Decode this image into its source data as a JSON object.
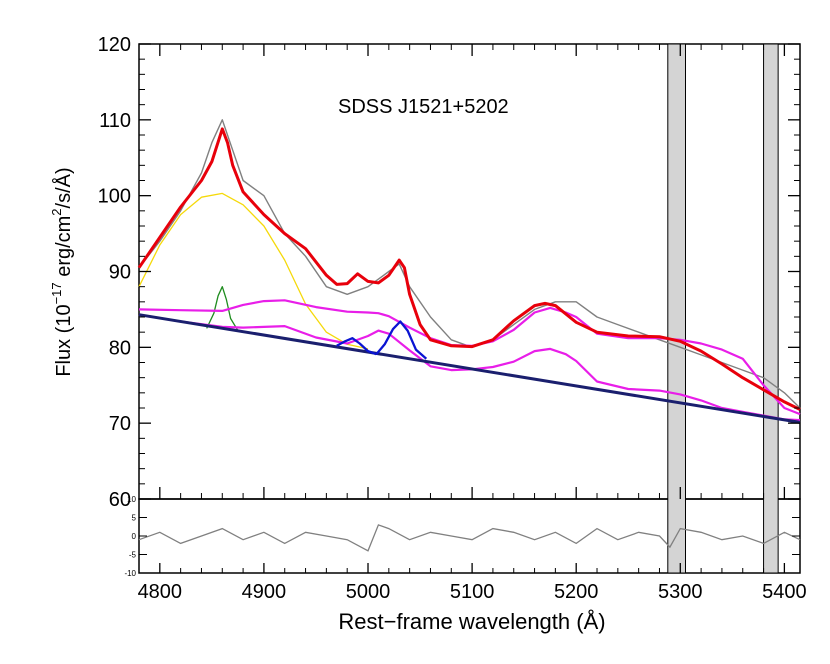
{
  "chart_data": {
    "type": "line",
    "title": "SDSS J1521+5202",
    "xlabel": "Rest−frame wavelength (Å)",
    "ylabel_main": "Flux (10",
    "ylabel_exp": "−17",
    "ylabel_mid": " erg/cm",
    "ylabel_exp2": "2",
    "ylabel_end": "/s/Å)",
    "xlim": [
      4780,
      5415
    ],
    "ylim": [
      60,
      120
    ],
    "residual_ylim": [
      -10,
      10
    ],
    "x_ticks": [
      4800,
      4900,
      5000,
      5100,
      5200,
      5300,
      5400
    ],
    "y_ticks": [
      60,
      70,
      80,
      90,
      100,
      110,
      120
    ],
    "residual_ticks": [
      -10,
      -5,
      0,
      5,
      10
    ],
    "shaded_regions": [
      [
        5288,
        5305
      ],
      [
        5380,
        5394
      ]
    ],
    "colors": {
      "observed": "#808080",
      "total_model": "#e8000b",
      "continuum": "#1a1f6e",
      "broad_hbeta": "#f5d90a",
      "narrow_hbeta": "#1e8c1e",
      "oiii": "#0a14d2",
      "feii": "#e81ee8",
      "residual": "#808080",
      "shade": "#d4d4d4"
    },
    "series": [
      {
        "name": "observed",
        "x": [
          4780,
          4800,
          4820,
          4840,
          4850,
          4860,
          4870,
          4880,
          4900,
          4920,
          4940,
          4960,
          4980,
          5000,
          5020,
          5030,
          5040,
          5060,
          5080,
          5100,
          5120,
          5140,
          5160,
          5180,
          5200,
          5220,
          5240,
          5260,
          5280,
          5300,
          5320,
          5340,
          5360,
          5380,
          5400,
          5415
        ],
        "y": [
          90.5,
          94,
          98,
          103,
          107,
          110,
          106,
          102,
          100,
          95,
          92,
          88,
          87,
          88,
          90,
          91,
          88,
          84,
          81,
          80,
          81,
          83,
          85,
          86,
          86,
          84,
          83,
          82,
          81,
          80,
          79,
          78,
          77,
          76,
          74,
          72
        ]
      },
      {
        "name": "total_model",
        "x": [
          4780,
          4800,
          4820,
          4840,
          4850,
          4860,
          4865,
          4870,
          4880,
          4900,
          4920,
          4940,
          4960,
          4970,
          4980,
          4990,
          5000,
          5010,
          5020,
          5030,
          5035,
          5040,
          5050,
          5060,
          5080,
          5100,
          5120,
          5140,
          5160,
          5170,
          5180,
          5200,
          5220,
          5250,
          5280,
          5300,
          5320,
          5340,
          5360,
          5380,
          5400,
          5415
        ],
        "y": [
          90.5,
          94.5,
          98.5,
          102,
          104.5,
          108.8,
          107,
          104,
          100.5,
          97.5,
          95,
          93,
          89.5,
          88.3,
          88.4,
          89.7,
          88.7,
          88.5,
          89.5,
          91.5,
          90.5,
          87,
          83,
          81,
          80.2,
          80.1,
          81,
          83.5,
          85.5,
          85.8,
          85.5,
          83.3,
          82,
          81.5,
          81.4,
          80.8,
          79.5,
          77.8,
          76,
          74.4,
          72.8,
          71.8
        ]
      },
      {
        "name": "continuum",
        "x": [
          4780,
          5415
        ],
        "y": [
          84.3,
          70.1
        ]
      },
      {
        "name": "broad_hbeta",
        "x": [
          4780,
          4800,
          4820,
          4840,
          4860,
          4880,
          4900,
          4920,
          4940,
          4960,
          4980,
          5000
        ],
        "y": [
          88,
          93.5,
          97.5,
          99.8,
          100.3,
          98.8,
          96,
          91.5,
          85.7,
          82,
          80.4,
          79.8
        ]
      },
      {
        "name": "narrow_hbeta",
        "x": [
          4845,
          4852,
          4856,
          4860,
          4864,
          4868,
          4875
        ],
        "y": [
          82.5,
          84.5,
          86.8,
          88,
          86.3,
          83.8,
          82.2
        ]
      },
      {
        "name": "oiii_4959",
        "x": [
          4970,
          4978,
          4985,
          4992,
          5000,
          5008
        ],
        "y": [
          80.2,
          80.8,
          81.2,
          80.5,
          79.5,
          79.1
        ]
      },
      {
        "name": "oiii_5007",
        "x": [
          5008,
          5016,
          5024,
          5031,
          5038,
          5046,
          5056
        ],
        "y": [
          79.1,
          80.4,
          82.4,
          83.4,
          82.2,
          79.7,
          78.5
        ]
      },
      {
        "name": "feii_template",
        "x": [
          4780,
          4820,
          4860,
          4880,
          4900,
          4920,
          4950,
          4980,
          5000,
          5010,
          5020,
          5040,
          5060,
          5080,
          5100,
          5120,
          5140,
          5160,
          5175,
          5190,
          5200,
          5220,
          5250,
          5280,
          5300,
          5320,
          5340,
          5360,
          5380,
          5400,
          5415
        ],
        "y": [
          85,
          84.9,
          84.8,
          85.6,
          86.1,
          86.2,
          85.3,
          84.7,
          84.6,
          84.5,
          84.1,
          82.6,
          81.2,
          80.3,
          80.2,
          80.8,
          82.3,
          84.6,
          85.2,
          84.6,
          84,
          81.8,
          81.2,
          81.2,
          81,
          80.5,
          79.7,
          78.5,
          75,
          72,
          71.2
        ]
      },
      {
        "name": "feii_on_continuum",
        "x": [
          4780,
          4820,
          4860,
          4880,
          4900,
          4920,
          4950,
          4980,
          5000,
          5010,
          5020,
          5040,
          5060,
          5080,
          5100,
          5120,
          5140,
          5160,
          5175,
          5190,
          5200,
          5220,
          5250,
          5280,
          5300,
          5320,
          5340,
          5360,
          5380,
          5400,
          5415
        ],
        "y": [
          84.3,
          83.4,
          82.7,
          82.6,
          82.7,
          82.8,
          81.3,
          80.5,
          81.5,
          82.2,
          81.8,
          79.6,
          77.5,
          77,
          77.1,
          77.4,
          78.1,
          79.5,
          79.8,
          79.1,
          78.2,
          75.5,
          74.5,
          74.3,
          73.8,
          73,
          72,
          71.5,
          71,
          70.5,
          70.4
        ]
      }
    ],
    "residual": {
      "name": "residual",
      "x": [
        4780,
        4800,
        4820,
        4840,
        4860,
        4880,
        4900,
        4920,
        4940,
        4960,
        4980,
        5000,
        5010,
        5020,
        5040,
        5060,
        5080,
        5100,
        5120,
        5140,
        5160,
        5180,
        5200,
        5220,
        5240,
        5260,
        5280,
        5290,
        5300,
        5320,
        5340,
        5360,
        5380,
        5400,
        5415
      ],
      "y": [
        -1,
        1,
        -2,
        0,
        2,
        -1,
        1,
        -2,
        1,
        0,
        -1,
        -4,
        3,
        2,
        -1,
        1,
        0,
        -1,
        2,
        1,
        -1,
        1,
        -2,
        2,
        -1,
        1,
        0,
        -3,
        2,
        1,
        -1,
        0,
        -2,
        1,
        -1
      ]
    }
  }
}
